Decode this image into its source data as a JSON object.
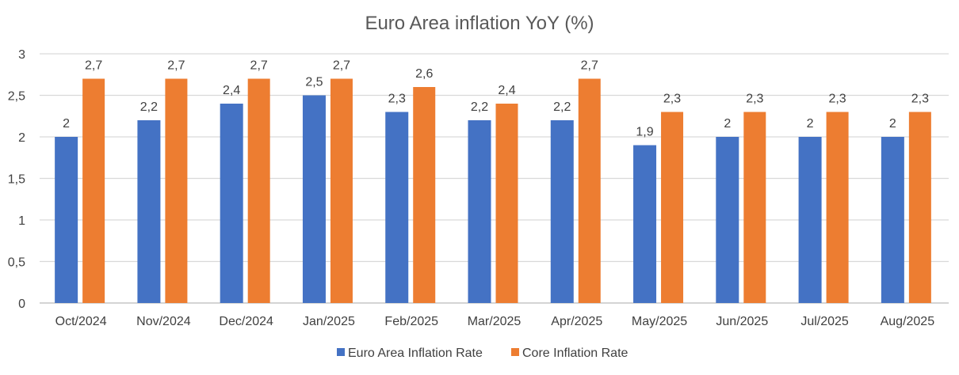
{
  "chart_data": {
    "type": "bar",
    "title": "Euro Area inflation YoY (%)",
    "xlabel": "",
    "ylabel": "",
    "ylim": [
      0,
      3
    ],
    "yticks": [
      0,
      0.5,
      1,
      1.5,
      2,
      2.5,
      3
    ],
    "grid": true,
    "legend_position": "bottom",
    "decimal_separator": ",",
    "categories": [
      "Oct/2024",
      "Nov/2024",
      "Dec/2024",
      "Jan/2025",
      "Feb/2025",
      "Mar/2025",
      "Apr/2025",
      "May/2025",
      "Jun/2025",
      "Jul/2025",
      "Aug/2025"
    ],
    "series": [
      {
        "name": "Euro Area Inflation Rate",
        "color": "#4472C4",
        "values": [
          2,
          2.2,
          2.4,
          2.5,
          2.3,
          2.2,
          2.2,
          1.9,
          2,
          2,
          2
        ]
      },
      {
        "name": "Core Inflation Rate",
        "color": "#ED7D31",
        "values": [
          2.7,
          2.7,
          2.7,
          2.7,
          2.6,
          2.4,
          2.7,
          2.3,
          2.3,
          2.3,
          2.3
        ]
      }
    ]
  }
}
